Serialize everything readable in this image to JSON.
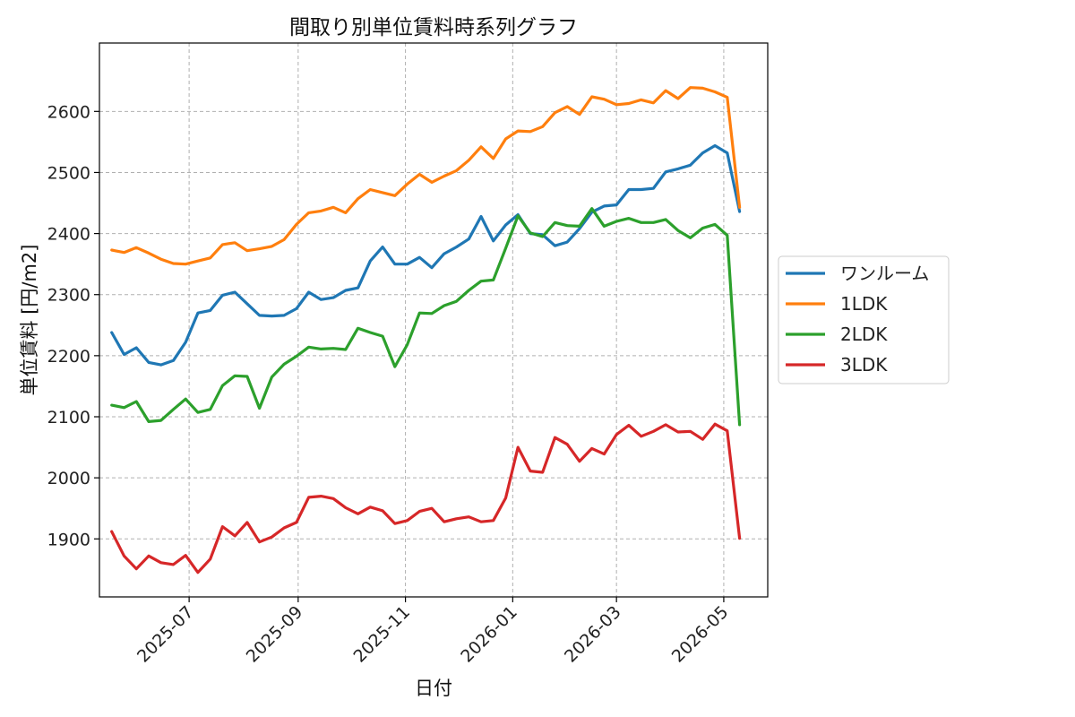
{
  "chart_data": {
    "type": "line",
    "title": "間取り別単位賃料時系列グラフ",
    "xlabel": "日付",
    "ylabel": "単位賃料 [円/m2]",
    "grid": true,
    "legend_position": "right-outside",
    "xlim": [
      "2025-05-11",
      "2026-05-26"
    ],
    "ylim": [
      1805,
      2712
    ],
    "x_ticks": [
      {
        "date": "2025-07-01",
        "label": "2025-07"
      },
      {
        "date": "2025-09-01",
        "label": "2025-09"
      },
      {
        "date": "2025-11-01",
        "label": "2025-11"
      },
      {
        "date": "2026-01-01",
        "label": "2026-01"
      },
      {
        "date": "2026-03-01",
        "label": "2026-03"
      },
      {
        "date": "2026-05-01",
        "label": "2026-05"
      }
    ],
    "y_ticks": [
      1900,
      2000,
      2100,
      2200,
      2300,
      2400,
      2500,
      2600
    ],
    "x": [
      "2025-05-18",
      "2025-05-25",
      "2025-06-01",
      "2025-06-08",
      "2025-06-15",
      "2025-06-22",
      "2025-06-29",
      "2025-07-06",
      "2025-07-13",
      "2025-07-20",
      "2025-07-27",
      "2025-08-03",
      "2025-08-10",
      "2025-08-17",
      "2025-08-24",
      "2025-08-31",
      "2025-09-07",
      "2025-09-14",
      "2025-09-21",
      "2025-09-28",
      "2025-10-05",
      "2025-10-12",
      "2025-10-19",
      "2025-10-26",
      "2025-11-02",
      "2025-11-09",
      "2025-11-16",
      "2025-11-23",
      "2025-11-30",
      "2025-12-07",
      "2025-12-14",
      "2025-12-21",
      "2025-12-28",
      "2026-01-04",
      "2026-01-11",
      "2026-01-18",
      "2026-01-25",
      "2026-02-01",
      "2026-02-08",
      "2026-02-15",
      "2026-02-22",
      "2026-03-01",
      "2026-03-08",
      "2026-03-15",
      "2026-03-22",
      "2026-03-29",
      "2026-04-05",
      "2026-04-12",
      "2026-04-19",
      "2026-04-26",
      "2026-05-03",
      "2026-05-10"
    ],
    "series": [
      {
        "name": "ワンルーム",
        "color": "#1f77b4",
        "values": [
          2238,
          2202,
          2213,
          2189,
          2185,
          2192,
          2222,
          2270,
          2274,
          2299,
          2304,
          2285,
          2266,
          2265,
          2266,
          2277,
          2304,
          2292,
          2295,
          2307,
          2311,
          2355,
          2378,
          2350,
          2350,
          2361,
          2344,
          2367,
          2378,
          2391,
          2428,
          2388,
          2414,
          2431,
          2400,
          2398,
          2380,
          2386,
          2408,
          2435,
          2445,
          2447,
          2472,
          2472,
          2474,
          2501,
          2506,
          2512,
          2532,
          2544,
          2532,
          2436
        ]
      },
      {
        "name": "1LDK",
        "color": "#ff7f0e",
        "values": [
          2373,
          2369,
          2377,
          2368,
          2358,
          2351,
          2350,
          2355,
          2360,
          2382,
          2385,
          2372,
          2375,
          2379,
          2390,
          2415,
          2434,
          2437,
          2443,
          2434,
          2457,
          2472,
          2467,
          2462,
          2481,
          2497,
          2484,
          2494,
          2503,
          2520,
          2542,
          2523,
          2555,
          2568,
          2567,
          2575,
          2598,
          2608,
          2595,
          2624,
          2620,
          2611,
          2613,
          2619,
          2614,
          2634,
          2621,
          2639,
          2638,
          2632,
          2623,
          2443
        ]
      },
      {
        "name": "2LDK",
        "color": "#2ca02c",
        "values": [
          2119,
          2115,
          2125,
          2092,
          2094,
          2112,
          2129,
          2107,
          2112,
          2151,
          2167,
          2166,
          2114,
          2165,
          2186,
          2199,
          2214,
          2211,
          2212,
          2210,
          2245,
          2238,
          2232,
          2182,
          2218,
          2270,
          2269,
          2282,
          2289,
          2307,
          2322,
          2324,
          2376,
          2429,
          2401,
          2395,
          2418,
          2413,
          2412,
          2441,
          2412,
          2420,
          2425,
          2418,
          2418,
          2423,
          2405,
          2393,
          2409,
          2415,
          2397,
          2087
        ]
      },
      {
        "name": "3LDK",
        "color": "#d62728",
        "values": [
          1912,
          1872,
          1851,
          1872,
          1861,
          1858,
          1873,
          1845,
          1867,
          1920,
          1905,
          1927,
          1895,
          1903,
          1918,
          1927,
          1968,
          1970,
          1966,
          1951,
          1941,
          1952,
          1946,
          1925,
          1930,
          1945,
          1950,
          1928,
          1933,
          1936,
          1928,
          1930,
          1967,
          2050,
          2011,
          2009,
          2066,
          2055,
          2027,
          2048,
          2039,
          2071,
          2086,
          2068,
          2076,
          2087,
          2075,
          2076,
          2063,
          2088,
          2077,
          1901
        ]
      }
    ]
  }
}
